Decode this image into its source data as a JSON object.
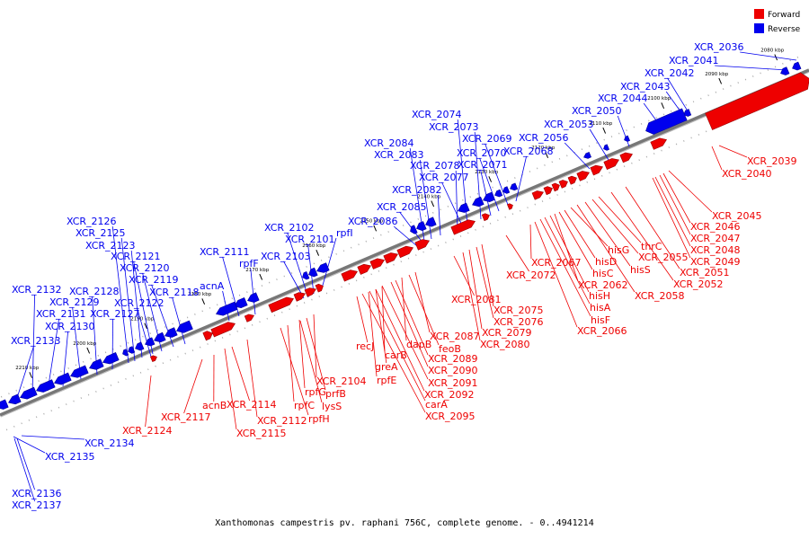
{
  "caption": "Xanthomonas campestris pv. raphani 756C, complete genome. - 0..4941214",
  "legend": [
    {
      "label": "Forward",
      "color": "#ee0000"
    },
    {
      "label": "Reverse",
      "color": "#0000ee"
    }
  ],
  "colors": {
    "forward": "#ee0000",
    "reverse": "#0000ee",
    "backbone": "#777777",
    "tick": "#000000"
  },
  "ticks": [
    "2080 kbp",
    "2090 kbp",
    "2100 kbp",
    "2110 kbp",
    "2120 kbp",
    "2130 kbp",
    "2140 kbp",
    "2150 kbp",
    "2160 kbp",
    "2170 kbp",
    "2180 kbp",
    "2190 kbp",
    "2200 kbp",
    "2210 kbp"
  ],
  "reverse_labels": [
    "XCR_2036",
    "XCR_2041",
    "XCR_2042",
    "XCR_2043",
    "XCR_2044",
    "XCR_2050",
    "XCR_2053",
    "XCR_2056",
    "XCR_2068",
    "XCR_2069",
    "XCR_2070",
    "XCR_2071",
    "XCR_2073",
    "XCR_2074",
    "XCR_2077",
    "XCR_2078",
    "XCR_2082",
    "XCR_2083",
    "XCR_2084",
    "XCR_2085",
    "XCR_2086",
    "rpfI",
    "XCR_2101",
    "XCR_2102",
    "XCR_2103",
    "rpfF",
    "XCR_2111",
    "acnA",
    "XCR_2118",
    "XCR_2119",
    "XCR_2120",
    "XCR_2121",
    "XCR_2122",
    "XCR_2123",
    "XCR_2125",
    "XCR_2126",
    "XCR_2127",
    "XCR_2128",
    "XCR_2129",
    "XCR_2130",
    "XCR_2131",
    "XCR_2132",
    "XCR_2133",
    "XCR_2134",
    "XCR_2135",
    "XCR_2136",
    "XCR_2137"
  ],
  "forward_labels": [
    "XCR_2039",
    "XCR_2040",
    "XCR_2045",
    "XCR_2046",
    "XCR_2047",
    "XCR_2048",
    "XCR_2049",
    "XCR_2051",
    "XCR_2052",
    "thrC",
    "XCR_2055",
    "hisS",
    "XCR_2058",
    "hisG",
    "hisD",
    "hisC",
    "XCR_2062",
    "hisH",
    "hisA",
    "hisF",
    "XCR_2066",
    "XCR_2067",
    "XCR_2072",
    "XCR_2075",
    "XCR_2076",
    "XCR_2079",
    "XCR_2080",
    "XCR_2081",
    "XCR_2087",
    "feoB",
    "dapB",
    "XCR_2089",
    "XCR_2090",
    "carB",
    "greA",
    "XCR_2091",
    "rpfE",
    "XCR_2092",
    "carA",
    "recJ",
    "XCR_2095",
    "XCR_2104",
    "prfB",
    "rpfG",
    "lysS",
    "rpfC",
    "rpfH",
    "XCR_2112",
    "XCR_2114",
    "XCR_2115",
    "acnB",
    "XCR_2117",
    "XCR_2124"
  ]
}
